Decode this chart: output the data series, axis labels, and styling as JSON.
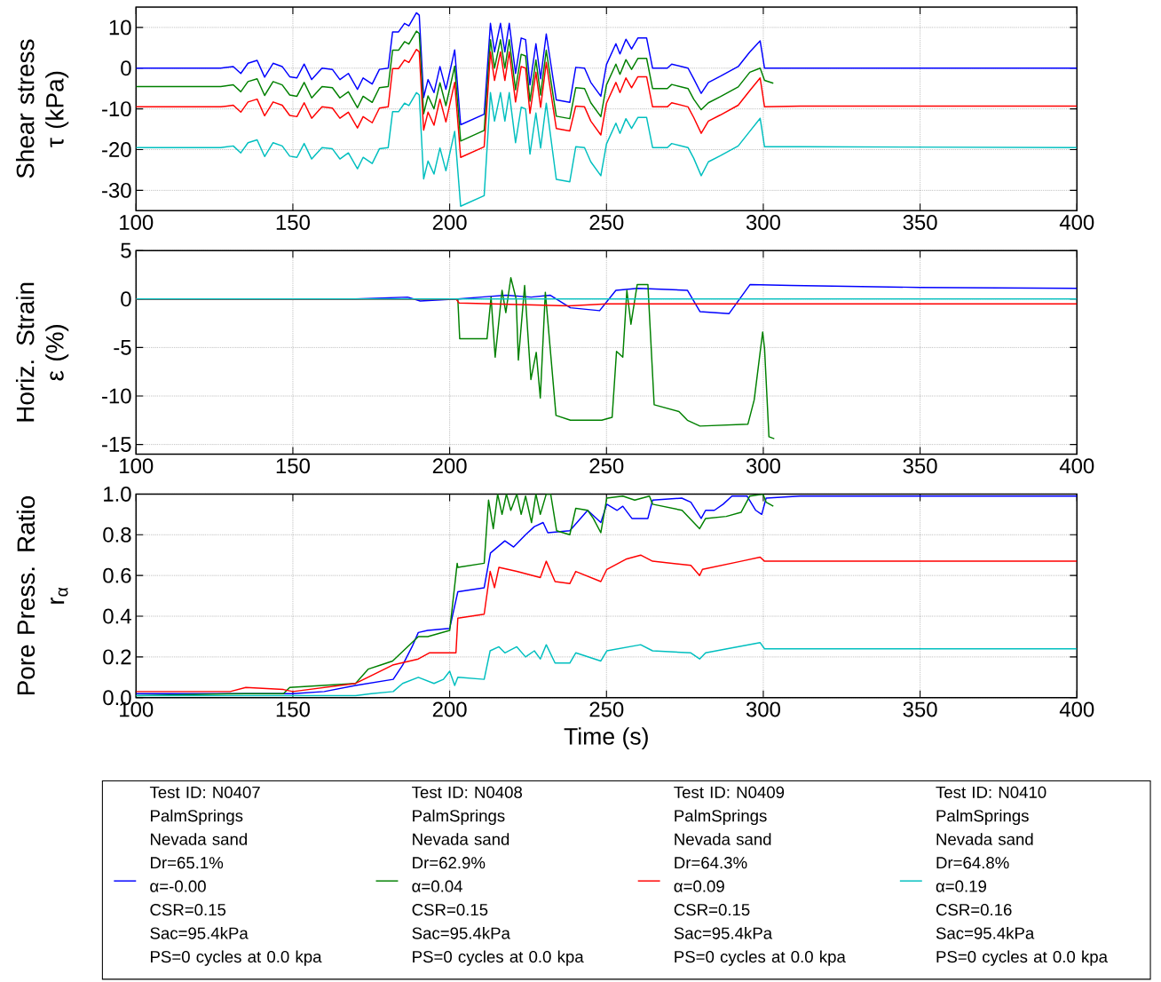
{
  "chart_data": [
    {
      "type": "line",
      "ylabel": "Shear stress\nτ (kPa)",
      "xlim": [
        100,
        400
      ],
      "xticks": [
        100,
        150,
        200,
        250,
        300,
        350,
        400
      ],
      "ylim": [
        -35,
        15
      ],
      "yticks": [
        -30,
        -20,
        -10,
        0,
        10
      ],
      "grid": true,
      "series": [
        {
          "color": "#0000ff",
          "x": [
            100,
            127,
            131,
            133.4,
            135.7,
            138.6,
            141,
            143.7,
            146.6,
            149,
            151.3,
            153.6,
            156,
            159.3,
            162.6,
            165,
            167.7,
            170.6,
            172.4,
            175.3,
            177.6,
            180.4,
            181.8,
            183.7,
            185.6,
            187,
            189.4,
            190.3,
            191.7,
            193.1,
            195,
            196.9,
            198.8,
            201.6,
            203.5,
            211,
            213,
            214.3,
            216.2,
            217.6,
            219,
            221,
            222.8,
            224.2,
            225.6,
            227.5,
            229,
            230.8,
            234,
            238.3,
            240.2,
            243,
            245,
            248.2,
            250,
            253,
            254.3,
            256.2,
            258,
            260,
            262.8,
            264.7,
            269.4,
            270.8,
            276,
            277.8,
            280.2,
            282.5,
            286.3,
            292,
            295.7,
            299,
            300.4,
            311.7,
            400
          ],
          "values": [
            0,
            0,
            0.4,
            -1.3,
            1.2,
            1.9,
            -2.2,
            1.2,
            0.4,
            -2.1,
            -2.4,
            1,
            -2.8,
            0,
            -0.3,
            -2.8,
            -1.3,
            -5.2,
            -2.4,
            -3.9,
            -0.3,
            0,
            8.9,
            8.9,
            11,
            10.4,
            13.6,
            13,
            -7.2,
            -2.8,
            -6,
            0.4,
            -5.2,
            4.5,
            -13.9,
            -11.3,
            11,
            4,
            11,
            4,
            11,
            -1.3,
            7.4,
            7,
            -4.1,
            6,
            -2.6,
            8.4,
            -7.8,
            -8.4,
            0.2,
            0,
            -3.5,
            -6.9,
            0.9,
            6,
            3.5,
            7.1,
            4.7,
            7.4,
            7.4,
            0,
            0,
            1,
            0,
            -2.6,
            -6.2,
            -3.5,
            -2,
            0.4,
            4,
            6.7,
            0,
            0,
            0
          ]
        },
        {
          "color": "#008000",
          "x": [
            100,
            127,
            131,
            133.4,
            135.7,
            138.6,
            141,
            143.7,
            146.6,
            149,
            151.3,
            153.6,
            156,
            159.3,
            162.6,
            165,
            167.7,
            170.6,
            172.4,
            175.3,
            177.6,
            180.4,
            181.8,
            183.7,
            185.6,
            187,
            189.4,
            190.3,
            191.7,
            193.1,
            195,
            196.9,
            198.8,
            201.6,
            203.5,
            211,
            213,
            214.3,
            216.2,
            217.6,
            219,
            221,
            222.8,
            224.2,
            225.6,
            227.5,
            229,
            230.8,
            234,
            238.3,
            240.2,
            243,
            245,
            248.2,
            250,
            253,
            254.3,
            256.2,
            258,
            260,
            262.8,
            264.7,
            269.4,
            270.8,
            276,
            277.8,
            280.2,
            282.5,
            286.3,
            292,
            295.7,
            299,
            300.4,
            303.2
          ],
          "values": [
            -4.5,
            -4.5,
            -4.1,
            -5.8,
            -3.3,
            -2.6,
            -6.7,
            -3.3,
            -4.1,
            -6.6,
            -6.9,
            -3.5,
            -7.3,
            -4.5,
            -4.8,
            -7.3,
            -5.8,
            -9.7,
            -6.9,
            -8.4,
            -4.8,
            -4.5,
            4.4,
            4.4,
            6.5,
            5.9,
            9.1,
            8.5,
            -11.2,
            -6.8,
            -10,
            -3.6,
            -9.2,
            0.5,
            -17.9,
            -15.3,
            7,
            0,
            7,
            0,
            7,
            -5.3,
            3.4,
            3,
            -8.1,
            2,
            -6.6,
            4.4,
            -11.8,
            -12.4,
            -4.8,
            -5,
            -8.5,
            -11.9,
            -4.1,
            1,
            -1.5,
            2.1,
            -0.3,
            2.4,
            2.4,
            -5,
            -5,
            -4,
            -5,
            -7.6,
            -10.2,
            -8.5,
            -7,
            -4.6,
            -1,
            0,
            -3,
            -3.7
          ]
        },
        {
          "color": "#ff0000",
          "x": [
            100,
            127,
            131,
            133.4,
            135.7,
            138.6,
            141,
            143.7,
            146.6,
            149,
            151.3,
            153.6,
            156,
            159.3,
            162.6,
            165,
            167.7,
            170.6,
            172.4,
            175.3,
            177.6,
            180.4,
            181.8,
            183.7,
            185.6,
            187,
            189.4,
            190.3,
            191.7,
            193.1,
            195,
            196.9,
            198.8,
            201.6,
            203.5,
            211,
            213,
            214.3,
            216.2,
            217.6,
            219,
            221,
            222.8,
            224.2,
            225.6,
            227.5,
            229,
            230.8,
            234,
            238.3,
            240.2,
            243,
            245,
            248.2,
            250,
            253,
            254.3,
            256.2,
            258,
            260,
            262.8,
            264.7,
            269.4,
            270.8,
            276,
            277.8,
            280.2,
            282.5,
            286.3,
            292,
            295.7,
            299,
            300.4,
            311.7,
            400
          ],
          "values": [
            -9.5,
            -9.5,
            -9.1,
            -10.8,
            -8.3,
            -7.6,
            -11.7,
            -8.3,
            -9.1,
            -11.6,
            -11.9,
            -8.5,
            -12.3,
            -9.5,
            -9.8,
            -12.3,
            -10.8,
            -14.7,
            -11.9,
            -13.4,
            -9.8,
            -9.5,
            -0.1,
            -0.1,
            2,
            1.4,
            4.6,
            4,
            -15.2,
            -10.8,
            -14,
            -7.6,
            -13.2,
            -3.5,
            -21.9,
            -19.3,
            4,
            -3,
            4,
            -3,
            4,
            -8.3,
            0.4,
            0,
            -11.1,
            -1,
            -9.6,
            1.4,
            -14.8,
            -15.4,
            -9.3,
            -9.5,
            -13,
            -16.4,
            -8.6,
            -3.5,
            -6,
            -2.4,
            -4.8,
            -2.1,
            -2.1,
            -9.5,
            -9.5,
            -8.5,
            -9.5,
            -12.1,
            -16,
            -13,
            -11.5,
            -9.1,
            -5.5,
            -2.4,
            -9.5,
            -9.3,
            -9.3
          ]
        },
        {
          "color": "#00bfbf",
          "x": [
            100,
            127,
            131,
            133.4,
            135.7,
            138.6,
            141,
            143.7,
            146.6,
            149,
            151.3,
            153.6,
            156,
            159.3,
            162.6,
            165,
            167.7,
            170.6,
            172.4,
            175.3,
            177.6,
            180.4,
            181.8,
            183.7,
            185.6,
            187,
            189.4,
            190.3,
            191.7,
            193.1,
            195,
            196.9,
            198.8,
            201.6,
            203.5,
            211,
            213,
            214.3,
            216.2,
            217.6,
            219,
            221,
            222.8,
            224.2,
            225.6,
            227.5,
            229,
            230.8,
            234,
            238.3,
            240.2,
            243,
            245,
            248.2,
            250,
            253,
            254.3,
            256.2,
            258,
            260,
            262.8,
            264.7,
            269.4,
            270.8,
            276,
            277.8,
            280.2,
            282.5,
            286.3,
            292,
            295.7,
            299,
            300.4,
            311.7,
            400
          ],
          "values": [
            -19.5,
            -19.5,
            -19.1,
            -20.8,
            -18.3,
            -17.6,
            -21.7,
            -18.3,
            -19.1,
            -21.6,
            -21.9,
            -18.5,
            -22.3,
            -19.5,
            -19.8,
            -22.3,
            -20.8,
            -24.7,
            -21.9,
            -23.4,
            -19.8,
            -19.5,
            -10.7,
            -10.7,
            -8.6,
            -9.2,
            -6,
            -6.6,
            -27.2,
            -22.8,
            -26,
            -19.6,
            -25.2,
            -15.5,
            -33.9,
            -31.3,
            -6,
            -13,
            -6,
            -13,
            -6,
            -18.3,
            -9.6,
            -10,
            -21.1,
            -11,
            -19.6,
            -8.6,
            -27.3,
            -27.9,
            -19.3,
            -19.5,
            -23,
            -26.4,
            -18.6,
            -13.5,
            -16,
            -12.4,
            -14.8,
            -12.1,
            -12.1,
            -19.5,
            -19.5,
            -18.5,
            -19.5,
            -22.1,
            -26.4,
            -23,
            -21.5,
            -19.1,
            -15.5,
            -12.3,
            -19.3,
            -19.3,
            -19.5
          ]
        }
      ]
    },
    {
      "type": "line",
      "ylabel": "Horiz. Strain\nε (%)",
      "xlim": [
        100,
        400
      ],
      "xticks": [
        100,
        150,
        200,
        250,
        300,
        350,
        400
      ],
      "ylim": [
        -16,
        5
      ],
      "yticks": [
        -15,
        -10,
        -5,
        0,
        5
      ],
      "grid": true,
      "series": [
        {
          "color": "#0000ff",
          "x": [
            100,
            170,
            186.6,
            190.6,
            202.6,
            210,
            218,
            226,
            232,
            238.5,
            247.8,
            253,
            260,
            275.8,
            279.8,
            289.1,
            295.8,
            308.8,
            350,
            400
          ],
          "values": [
            0,
            0,
            0.2,
            -0.2,
            0,
            0.2,
            0.4,
            0.2,
            0.4,
            -0.9,
            -1.2,
            0.9,
            1.1,
            0.9,
            -1.3,
            -1.5,
            1.5,
            1.4,
            1.2,
            1.1
          ]
        },
        {
          "color": "#008000",
          "x": [
            100,
            202.6,
            203.2,
            211.9,
            213.2,
            214.5,
            216.7,
            217.9,
            219.5,
            221.2,
            221.9,
            223.9,
            225.9,
            227.6,
            228.9,
            230.5,
            233.9,
            238.5,
            248.5,
            251.8,
            253.2,
            255.2,
            256.5,
            257.8,
            259.8,
            263.2,
            265.2,
            273.1,
            275.8,
            279.8,
            295.1,
            297.1,
            299.8,
            300.4,
            301.8,
            303.5
          ],
          "values": [
            0,
            0,
            -4.1,
            -4.1,
            0.2,
            -6,
            0.9,
            -1.4,
            2.2,
            0,
            -6.3,
            1.4,
            -8.3,
            -5.5,
            -10.2,
            0.7,
            -12,
            -12.5,
            -12.5,
            -12.2,
            -5.4,
            -6,
            0.9,
            -2.6,
            1.5,
            1.5,
            -10.9,
            -11.6,
            -12.5,
            -13.1,
            -12.9,
            -10.4,
            -3.4,
            -5.1,
            -14.2,
            -14.4
          ]
        },
        {
          "color": "#ff0000",
          "x": [
            100,
            202,
            203,
            238,
            250,
            400
          ],
          "values": [
            0,
            0,
            -0.4,
            -0.7,
            -0.5,
            -0.5
          ]
        },
        {
          "color": "#00bfbf",
          "x": [
            100,
            400
          ],
          "values": [
            0,
            0
          ]
        }
      ]
    },
    {
      "type": "line",
      "ylabel": "Pore Press. Ratio\nr$_{α}$",
      "xlabel": "Time (s)",
      "xlim": [
        100,
        400
      ],
      "xticks": [
        100,
        150,
        200,
        250,
        300,
        350,
        400
      ],
      "ylim": [
        0,
        1
      ],
      "yticks": [
        {
          "value": 0,
          "label": "0.0"
        },
        0.2,
        0.4,
        0.6,
        0.8,
        {
          "value": 1,
          "label": "1.0"
        }
      ],
      "grid": true,
      "legend": "bottom",
      "series": [
        {
          "name": "Test ID:  N0407\nPalmSprings\nNevada sand\nDr=65.1%\n α=-0.00\nCSR=0.15\nSac=95.4kPa\nPS=0 cycles at 0.0 kpa",
          "color": "#0000ff",
          "x": [
            100,
            150,
            160,
            170,
            182,
            185,
            188,
            190,
            193,
            200,
            202.6,
            211,
            213,
            217.6,
            220.4,
            224.2,
            227,
            229.8,
            231.3,
            238.3,
            240.2,
            244,
            248.2,
            250.1,
            253.4,
            255.2,
            258.1,
            263.2,
            264.7,
            274,
            276.9,
            280.2,
            281.6,
            284.4,
            287.2,
            290,
            294.8,
            297.6,
            299.5,
            300.9,
            311.7,
            400
          ],
          "values": [
            0.02,
            0.02,
            0.03,
            0.06,
            0.09,
            0.16,
            0.25,
            0.32,
            0.33,
            0.34,
            0.52,
            0.54,
            0.71,
            0.77,
            0.74,
            0.8,
            0.84,
            0.86,
            0.81,
            0.82,
            null,
            0.92,
            0.86,
            0.95,
            0.92,
            0.94,
            0.88,
            0.88,
            0.97,
            0.98,
            0.96,
            0.88,
            0.92,
            0.92,
            0.95,
            0.99,
            0.99,
            0.92,
            0.9,
            0.98,
            0.99,
            0.99
          ]
        },
        {
          "name": "Test ID:  N0408\nPalmSprings\nNevada sand\nDr=62.9%\n α=0.04\nCSR=0.15\nSac=95.4kPa\nPS=0 cycles at 0.0 kpa",
          "color": "#008000",
          "x": [
            100,
            135,
            147,
            149,
            170,
            174,
            178,
            181.8,
            190,
            193,
            200,
            202.4,
            202.6,
            211,
            212.4,
            213.9,
            215.3,
            216.7,
            218.1,
            219.5,
            221.4,
            222.8,
            224.2,
            226.1,
            227.5,
            228.9,
            230.8,
            232.2,
            234.1,
            238.3,
            240.2,
            244,
            245.8,
            248.2,
            250.1,
            255.2,
            259,
            263.7,
            264.7,
            274.1,
            279.7,
            281.6,
            288.2,
            292.9,
            295.7,
            299.9,
            300.9,
            303.2
          ],
          "values": [
            0.01,
            0.02,
            0.02,
            0.05,
            0.07,
            0.14,
            0.16,
            0.18,
            0.3,
            0.3,
            0.33,
            0.66,
            0.64,
            0.66,
            0.97,
            0.83,
            1.0,
            0.9,
            1.0,
            0.92,
            1.0,
            0.9,
            0.99,
            0.86,
            1.0,
            0.9,
            1.0,
            1.0,
            0.82,
            0.8,
            0.93,
            0.92,
            0.88,
            0.81,
            0.98,
            0.99,
            0.97,
            0.99,
            0.95,
            0.92,
            0.83,
            0.88,
            0.89,
            0.91,
            0.99,
            1.0,
            0.96,
            0.94
          ]
        },
        {
          "name": "Test ID:  N0409\nPalmSprings\nNevada sand\nDr=64.3%\n α=0.09\nCSR=0.15\nSac=95.4kPa\nPS=0 cycles at 0.0 kpa",
          "color": "#ff0000",
          "x": [
            100,
            130,
            135,
            147,
            150,
            155,
            170,
            181.8,
            190,
            193.5,
            202,
            202.6,
            211,
            212.9,
            214.3,
            215.7,
            221.4,
            228.9,
            230.8,
            233.6,
            238.3,
            240.2,
            248.2,
            250.1,
            256.2,
            260.9,
            264.7,
            276.9,
            279.7,
            280.6,
            292.9,
            299,
            300.4,
            400
          ],
          "values": [
            0.03,
            0.03,
            0.05,
            0.04,
            0.03,
            0.04,
            0.07,
            0.16,
            0.19,
            0.22,
            0.22,
            0.39,
            0.41,
            0.62,
            0.54,
            0.64,
            0.62,
            0.59,
            0.67,
            0.57,
            0.56,
            0.62,
            0.57,
            0.63,
            0.68,
            0.7,
            0.67,
            0.65,
            0.6,
            0.63,
            0.67,
            0.69,
            0.67,
            0.67
          ]
        },
        {
          "name": "Test ID:  N0410\nPalmSprings\nNevada sand\nDr=64.8%\n α=0.19\nCSR=0.16\nSac=95.4kPa\nPS=0 cycles at 0.0 kpa",
          "color": "#00bfbf",
          "x": [
            100,
            150,
            170,
            175,
            182,
            185,
            190,
            195,
            198,
            200,
            201.6,
            202.6,
            211,
            212.9,
            215.7,
            217.6,
            221.4,
            224.2,
            227,
            228.9,
            230.8,
            233.6,
            238.3,
            240.2,
            248.2,
            250.1,
            260.9,
            264.7,
            276.9,
            279.7,
            281.6,
            299,
            300.4,
            400
          ],
          "values": [
            0.01,
            0.01,
            0.01,
            0.02,
            0.03,
            0.07,
            0.1,
            0.07,
            0.09,
            0.13,
            0.06,
            0.1,
            0.09,
            0.23,
            0.25,
            0.22,
            0.25,
            0.2,
            0.23,
            0.19,
            0.26,
            0.17,
            0.17,
            0.22,
            0.18,
            0.23,
            0.26,
            0.23,
            0.22,
            0.19,
            0.22,
            0.27,
            0.24,
            0.24
          ]
        }
      ]
    }
  ]
}
